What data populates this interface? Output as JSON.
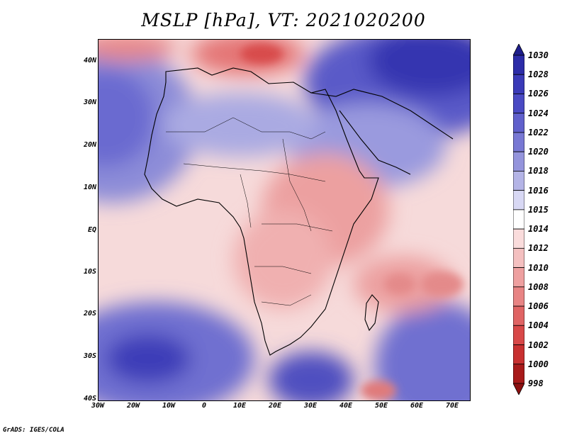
{
  "title": "MSLP [hPa], VT: 2021020200",
  "credit": "GrADS: IGES/COLA",
  "map": {
    "lat_ticks": [
      "40N",
      "30N",
      "20N",
      "10N",
      "EQ",
      "10S",
      "20S",
      "30S",
      "40S"
    ],
    "lon_ticks": [
      "30W",
      "20W",
      "10W",
      "0",
      "10E",
      "20E",
      "30E",
      "40E",
      "50E",
      "60E",
      "70E"
    ]
  },
  "colorbar": {
    "levels": [
      "1030",
      "1028",
      "1026",
      "1024",
      "1022",
      "1020",
      "1018",
      "1016",
      "1015",
      "1014",
      "1012",
      "1010",
      "1008",
      "1006",
      "1004",
      "1002",
      "1000",
      "998"
    ],
    "colors": [
      "#1e1e8c",
      "#2c2ca8",
      "#3a3ab8",
      "#4a4ac4",
      "#6060cc",
      "#7878d4",
      "#9494dc",
      "#b4b4e6",
      "#d8d8f4",
      "#ffffff",
      "#fadcdc",
      "#f4c0c0",
      "#eea0a0",
      "#e88484",
      "#e06464",
      "#d84848",
      "#c83030",
      "#a81a1a",
      "#8c1010"
    ]
  }
}
